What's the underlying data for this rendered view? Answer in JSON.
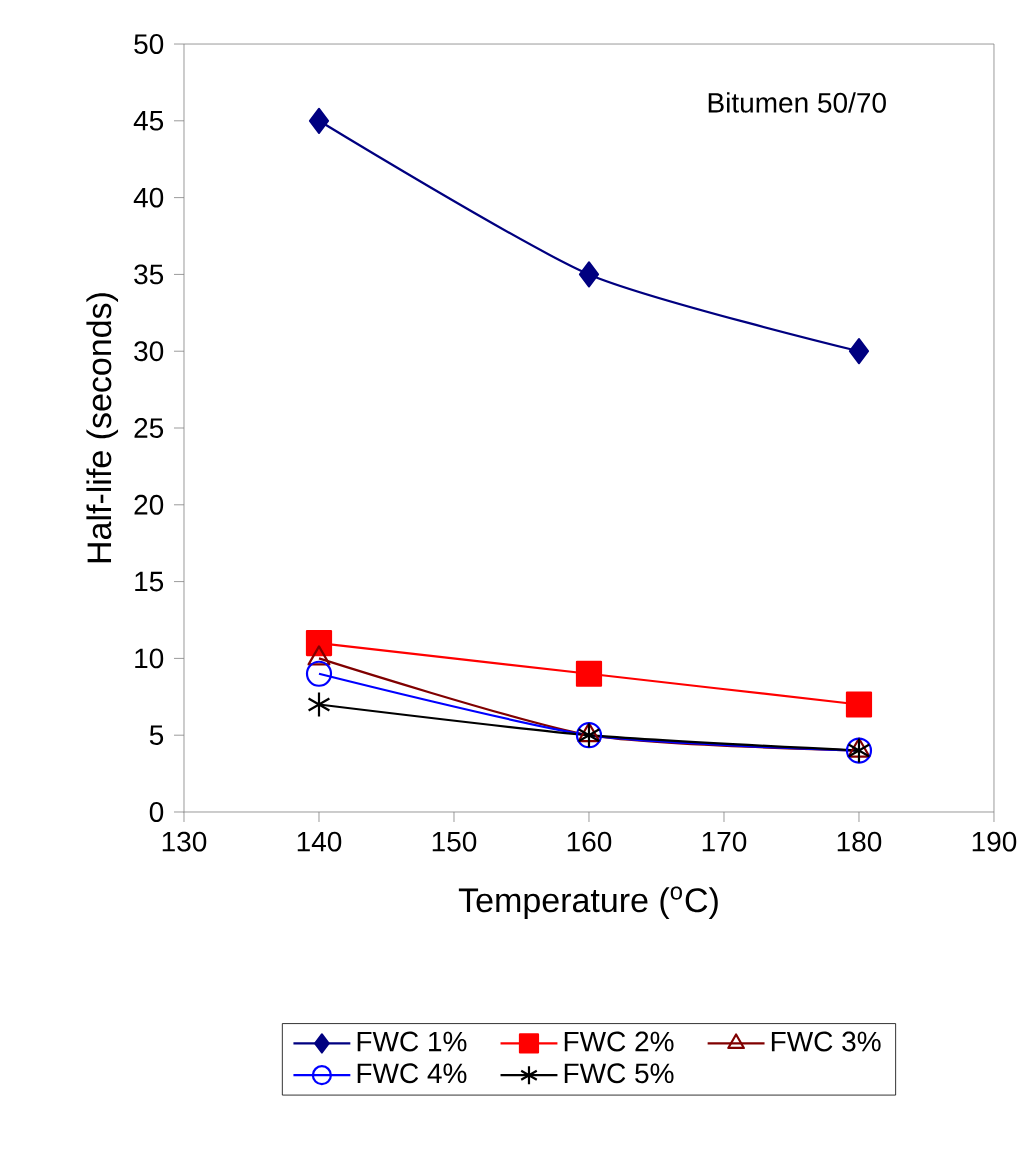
{
  "chart_data": {
    "type": "line",
    "xlabel": "Temperature ($^{o}$C)",
    "ylabel": "Half-life (seconds)",
    "annotations": [
      "Bitumen 50/70"
    ],
    "x": [
      140,
      160,
      180
    ],
    "series": [
      {
        "name": "FWC 1%",
        "color": "#000080",
        "marker": "diamond",
        "values": [
          45,
          35,
          30
        ]
      },
      {
        "name": "FWC 2%",
        "color": "#ff0000",
        "marker": "square",
        "values": [
          11,
          9,
          7
        ]
      },
      {
        "name": "FWC 3%",
        "color": "#800000",
        "marker": "triangle",
        "values": [
          10,
          5,
          4
        ]
      },
      {
        "name": "FWC 4%",
        "color": "#0000ff",
        "marker": "circle",
        "values": [
          9,
          5,
          4
        ]
      },
      {
        "name": "FWC 5%",
        "color": "#000000",
        "marker": "cross",
        "values": [
          7,
          5,
          4
        ]
      }
    ],
    "xlim": [
      130,
      190
    ],
    "xticks": [
      130,
      140,
      150,
      160,
      170,
      180,
      190
    ],
    "ylim": [
      0,
      50
    ],
    "yticks": [
      0,
      5,
      10,
      15,
      20,
      25,
      30,
      35,
      40,
      45,
      50
    ],
    "grid": false,
    "legend": "bottom"
  }
}
